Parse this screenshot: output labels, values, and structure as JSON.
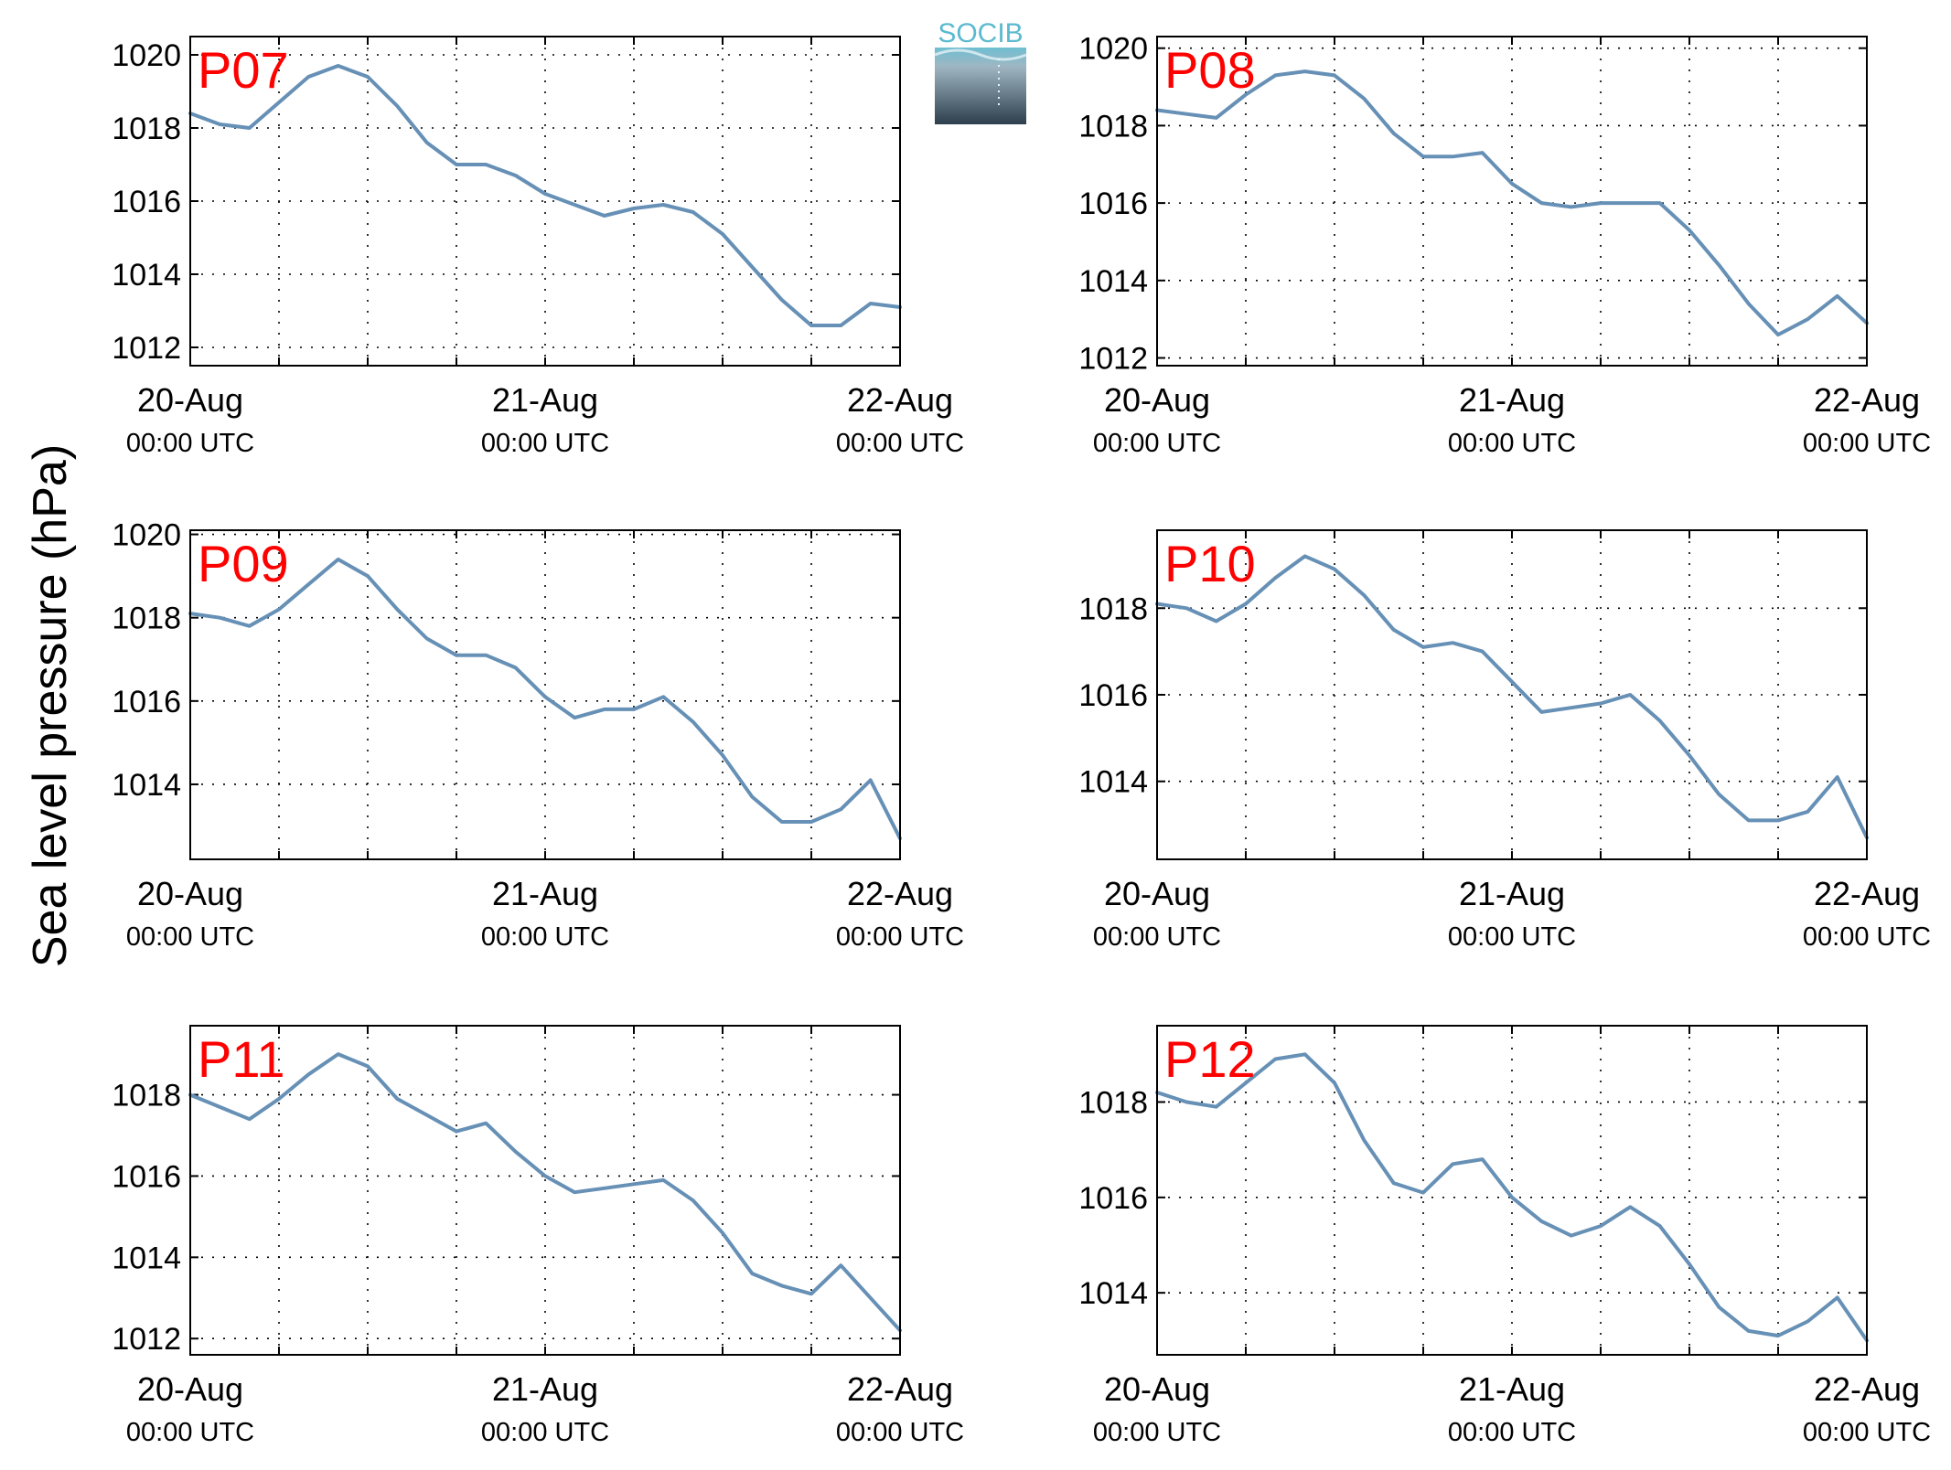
{
  "figure": {
    "ylabel": "Sea level pressure (hPa)",
    "logo_text": "SOCIB",
    "colors": {
      "line": "#6690b5",
      "panel_label": "#ff0000",
      "axis": "#000000",
      "grid": "#000000"
    }
  },
  "chart_data": [
    {
      "type": "line",
      "panel_label": "P07",
      "xlabel": "",
      "ylabel": "",
      "x": [
        "2015-08-20T00:00",
        "2015-08-20T02:00",
        "2015-08-20T04:00",
        "2015-08-20T06:00",
        "2015-08-20T08:00",
        "2015-08-20T10:00",
        "2015-08-20T12:00",
        "2015-08-20T14:00",
        "2015-08-20T16:00",
        "2015-08-20T18:00",
        "2015-08-20T20:00",
        "2015-08-20T22:00",
        "2015-08-21T00:00",
        "2015-08-21T02:00",
        "2015-08-21T04:00",
        "2015-08-21T06:00",
        "2015-08-21T08:00",
        "2015-08-21T10:00",
        "2015-08-21T12:00",
        "2015-08-21T14:00",
        "2015-08-21T16:00",
        "2015-08-21T18:00",
        "2015-08-21T20:00",
        "2015-08-21T22:00",
        "2015-08-22T00:00"
      ],
      "series": [
        {
          "values": [
            1018.4,
            1018.1,
            1018.0,
            1018.7,
            1019.4,
            1019.7,
            1019.4,
            1018.6,
            1017.6,
            1017.0,
            1017.0,
            1016.7,
            1016.2,
            1015.9,
            1015.6,
            1015.8,
            1015.9,
            1015.7,
            1015.1,
            1014.2,
            1013.3,
            1012.6,
            1012.6,
            1013.2,
            1013.1
          ]
        }
      ],
      "ylim": [
        1011.5,
        1020.5
      ],
      "yticks": [
        1012,
        1014,
        1016,
        1018,
        1020
      ],
      "xticks": [
        {
          "date": "20-Aug",
          "time": "00:00 UTC"
        },
        {
          "date": "21-Aug",
          "time": "00:00 UTC"
        },
        {
          "date": "22-Aug",
          "time": "00:00 UTC"
        }
      ],
      "grid": true
    },
    {
      "type": "line",
      "panel_label": "P08",
      "xlabel": "",
      "ylabel": "",
      "x": [
        "2015-08-20T00:00",
        "2015-08-20T02:00",
        "2015-08-20T04:00",
        "2015-08-20T06:00",
        "2015-08-20T08:00",
        "2015-08-20T10:00",
        "2015-08-20T12:00",
        "2015-08-20T14:00",
        "2015-08-20T16:00",
        "2015-08-20T18:00",
        "2015-08-20T20:00",
        "2015-08-20T22:00",
        "2015-08-21T00:00",
        "2015-08-21T02:00",
        "2015-08-21T04:00",
        "2015-08-21T06:00",
        "2015-08-21T08:00",
        "2015-08-21T10:00",
        "2015-08-21T12:00",
        "2015-08-21T14:00",
        "2015-08-21T16:00",
        "2015-08-21T18:00",
        "2015-08-21T20:00",
        "2015-08-21T22:00",
        "2015-08-22T00:00"
      ],
      "series": [
        {
          "values": [
            1018.4,
            1018.3,
            1018.2,
            1018.8,
            1019.3,
            1019.4,
            1019.3,
            1018.7,
            1017.8,
            1017.2,
            1017.2,
            1017.3,
            1016.5,
            1016.0,
            1015.9,
            1016.0,
            1016.0,
            1016.0,
            1015.3,
            1014.4,
            1013.4,
            1012.6,
            1013.0,
            1013.6,
            1012.9
          ]
        }
      ],
      "ylim": [
        1011.8,
        1020.3
      ],
      "yticks": [
        1012,
        1014,
        1016,
        1018,
        1020
      ],
      "xticks": [
        {
          "date": "20-Aug",
          "time": "00:00 UTC"
        },
        {
          "date": "21-Aug",
          "time": "00:00 UTC"
        },
        {
          "date": "22-Aug",
          "time": "00:00 UTC"
        }
      ],
      "grid": true
    },
    {
      "type": "line",
      "panel_label": "P09",
      "xlabel": "",
      "ylabel": "",
      "x": [
        "2015-08-20T00:00",
        "2015-08-20T02:00",
        "2015-08-20T04:00",
        "2015-08-20T06:00",
        "2015-08-20T08:00",
        "2015-08-20T10:00",
        "2015-08-20T12:00",
        "2015-08-20T14:00",
        "2015-08-20T16:00",
        "2015-08-20T18:00",
        "2015-08-20T20:00",
        "2015-08-20T22:00",
        "2015-08-21T00:00",
        "2015-08-21T02:00",
        "2015-08-21T04:00",
        "2015-08-21T06:00",
        "2015-08-21T08:00",
        "2015-08-21T10:00",
        "2015-08-21T12:00",
        "2015-08-21T14:00",
        "2015-08-21T16:00",
        "2015-08-21T18:00",
        "2015-08-21T20:00",
        "2015-08-21T22:00",
        "2015-08-22T00:00"
      ],
      "series": [
        {
          "values": [
            1018.1,
            1018.0,
            1017.8,
            1018.2,
            1018.8,
            1019.4,
            1019.0,
            1018.2,
            1017.5,
            1017.1,
            1017.1,
            1016.8,
            1016.1,
            1015.6,
            1015.8,
            1015.8,
            1016.1,
            1015.5,
            1014.7,
            1013.7,
            1013.1,
            1013.1,
            1013.4,
            1014.1,
            1012.7
          ]
        }
      ],
      "ylim": [
        1012.2,
        1020.1
      ],
      "yticks": [
        1014,
        1016,
        1018,
        1020
      ],
      "xticks": [
        {
          "date": "20-Aug",
          "time": "00:00 UTC"
        },
        {
          "date": "21-Aug",
          "time": "00:00 UTC"
        },
        {
          "date": "22-Aug",
          "time": "00:00 UTC"
        }
      ],
      "grid": true
    },
    {
      "type": "line",
      "panel_label": "P10",
      "xlabel": "",
      "ylabel": "",
      "x": [
        "2015-08-20T00:00",
        "2015-08-20T02:00",
        "2015-08-20T04:00",
        "2015-08-20T06:00",
        "2015-08-20T08:00",
        "2015-08-20T10:00",
        "2015-08-20T12:00",
        "2015-08-20T14:00",
        "2015-08-20T16:00",
        "2015-08-20T18:00",
        "2015-08-20T20:00",
        "2015-08-20T22:00",
        "2015-08-21T00:00",
        "2015-08-21T02:00",
        "2015-08-21T04:00",
        "2015-08-21T06:00",
        "2015-08-21T08:00",
        "2015-08-21T10:00",
        "2015-08-21T12:00",
        "2015-08-21T14:00",
        "2015-08-21T16:00",
        "2015-08-21T18:00",
        "2015-08-21T20:00",
        "2015-08-21T22:00",
        "2015-08-22T00:00"
      ],
      "series": [
        {
          "values": [
            1018.1,
            1018.0,
            1017.7,
            1018.1,
            1018.7,
            1019.2,
            1018.9,
            1018.3,
            1017.5,
            1017.1,
            1017.2,
            1017.0,
            1016.3,
            1015.6,
            1015.7,
            1015.8,
            1016.0,
            1015.4,
            1014.6,
            1013.7,
            1013.1,
            1013.1,
            1013.3,
            1014.1,
            1012.7
          ]
        }
      ],
      "ylim": [
        1012.2,
        1019.8
      ],
      "yticks": [
        1014,
        1016,
        1018
      ],
      "xticks": [
        {
          "date": "20-Aug",
          "time": "00:00 UTC"
        },
        {
          "date": "21-Aug",
          "time": "00:00 UTC"
        },
        {
          "date": "22-Aug",
          "time": "00:00 UTC"
        }
      ],
      "grid": true
    },
    {
      "type": "line",
      "panel_label": "P11",
      "xlabel": "",
      "ylabel": "",
      "x": [
        "2015-08-20T00:00",
        "2015-08-20T02:00",
        "2015-08-20T04:00",
        "2015-08-20T06:00",
        "2015-08-20T08:00",
        "2015-08-20T10:00",
        "2015-08-20T12:00",
        "2015-08-20T14:00",
        "2015-08-20T16:00",
        "2015-08-20T18:00",
        "2015-08-20T20:00",
        "2015-08-20T22:00",
        "2015-08-21T00:00",
        "2015-08-21T02:00",
        "2015-08-21T04:00",
        "2015-08-21T06:00",
        "2015-08-21T08:00",
        "2015-08-21T10:00",
        "2015-08-21T12:00",
        "2015-08-21T14:00",
        "2015-08-21T16:00",
        "2015-08-21T18:00",
        "2015-08-21T20:00",
        "2015-08-21T22:00",
        "2015-08-22T00:00"
      ],
      "series": [
        {
          "values": [
            1018.0,
            1017.7,
            1017.4,
            1017.9,
            1018.5,
            1019.0,
            1018.7,
            1017.9,
            1017.5,
            1017.1,
            1017.3,
            1016.6,
            1016.0,
            1015.6,
            1015.7,
            1015.8,
            1015.9,
            1015.4,
            1014.6,
            1013.6,
            1013.3,
            1013.1,
            1013.8,
            1013.0,
            1012.2
          ]
        }
      ],
      "ylim": [
        1011.6,
        1019.7
      ],
      "yticks": [
        1012,
        1014,
        1016,
        1018
      ],
      "xticks": [
        {
          "date": "20-Aug",
          "time": "00:00 UTC"
        },
        {
          "date": "21-Aug",
          "time": "00:00 UTC"
        },
        {
          "date": "22-Aug",
          "time": "00:00 UTC"
        }
      ],
      "grid": true
    },
    {
      "type": "line",
      "panel_label": "P12",
      "xlabel": "",
      "ylabel": "",
      "x": [
        "2015-08-20T00:00",
        "2015-08-20T02:00",
        "2015-08-20T04:00",
        "2015-08-20T06:00",
        "2015-08-20T08:00",
        "2015-08-20T10:00",
        "2015-08-20T12:00",
        "2015-08-20T14:00",
        "2015-08-20T16:00",
        "2015-08-20T18:00",
        "2015-08-20T20:00",
        "2015-08-20T22:00",
        "2015-08-21T00:00",
        "2015-08-21T02:00",
        "2015-08-21T04:00",
        "2015-08-21T06:00",
        "2015-08-21T08:00",
        "2015-08-21T10:00",
        "2015-08-21T12:00",
        "2015-08-21T14:00",
        "2015-08-21T16:00",
        "2015-08-21T18:00",
        "2015-08-21T20:00",
        "2015-08-21T22:00",
        "2015-08-22T00:00"
      ],
      "series": [
        {
          "values": [
            1018.2,
            1018.0,
            1017.9,
            1018.4,
            1018.9,
            1019.0,
            1018.4,
            1017.2,
            1016.3,
            1016.1,
            1016.7,
            1016.8,
            1016.0,
            1015.5,
            1015.2,
            1015.4,
            1015.8,
            1015.4,
            1014.6,
            1013.7,
            1013.2,
            1013.1,
            1013.4,
            1013.9,
            1013.0
          ]
        }
      ],
      "ylim": [
        1012.7,
        1019.6
      ],
      "yticks": [
        1014,
        1016,
        1018
      ],
      "xticks": [
        {
          "date": "20-Aug",
          "time": "00:00 UTC"
        },
        {
          "date": "21-Aug",
          "time": "00:00 UTC"
        },
        {
          "date": "22-Aug",
          "time": "00:00 UTC"
        }
      ],
      "grid": true
    }
  ]
}
